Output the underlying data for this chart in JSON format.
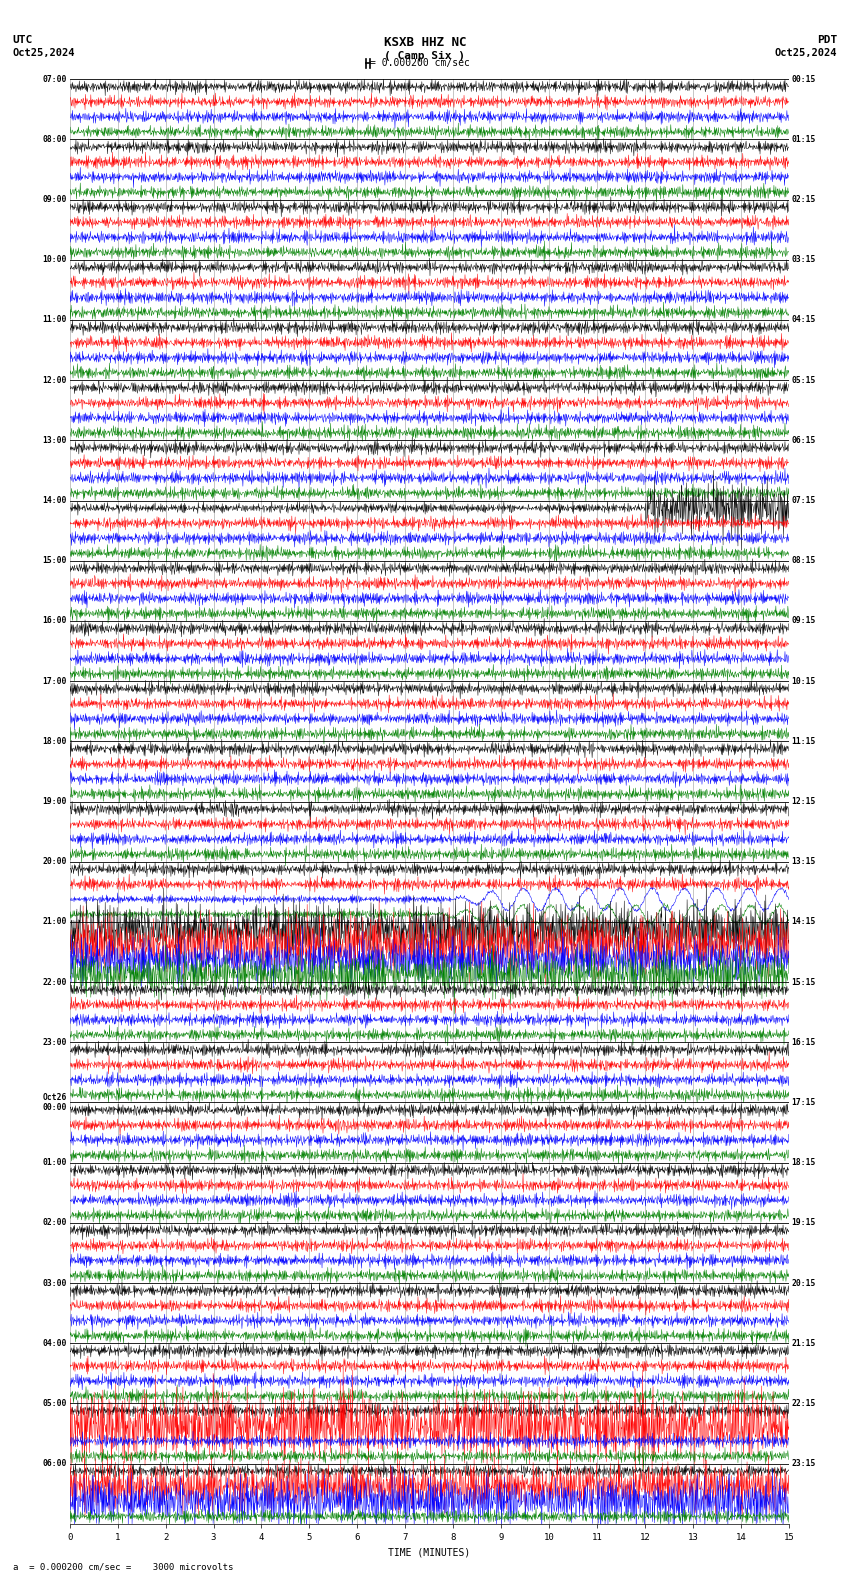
{
  "title_station": "KSXB HHZ NC",
  "title_subtitle": "( Camp Six )",
  "scale_label": "= 0.000200 cm/sec",
  "utc_label": "UTC",
  "date_left": "Oct25,2024",
  "date_right": "Oct25,2024",
  "pdt_label": "PDT",
  "bottom_label": "a  = 0.000200 cm/sec =    3000 microvolts",
  "xlabel": "TIME (MINUTES)",
  "bg_color": "#ffffff",
  "trace_colors": [
    "#000000",
    "#ff0000",
    "#0000ff",
    "#008000"
  ],
  "utc_times_left": [
    "07:00",
    "08:00",
    "09:00",
    "10:00",
    "11:00",
    "12:00",
    "13:00",
    "14:00",
    "15:00",
    "16:00",
    "17:00",
    "18:00",
    "19:00",
    "20:00",
    "21:00",
    "22:00",
    "23:00",
    "Oct26\n00:00",
    "01:00",
    "02:00",
    "03:00",
    "04:00",
    "05:00",
    "06:00"
  ],
  "pdt_times_right": [
    "00:15",
    "01:15",
    "02:15",
    "03:15",
    "04:15",
    "05:15",
    "06:15",
    "07:15",
    "08:15",
    "09:15",
    "10:15",
    "11:15",
    "12:15",
    "13:15",
    "14:15",
    "15:15",
    "16:15",
    "17:15",
    "18:15",
    "19:15",
    "20:15",
    "21:15",
    "22:15",
    "23:15"
  ],
  "n_rows": 24,
  "traces_per_row": 4,
  "minutes_per_row": 15,
  "samples_per_minute": 100,
  "seed": 42,
  "noise_amp": 0.055,
  "figsize": [
    8.5,
    15.84
  ],
  "dpi": 100
}
